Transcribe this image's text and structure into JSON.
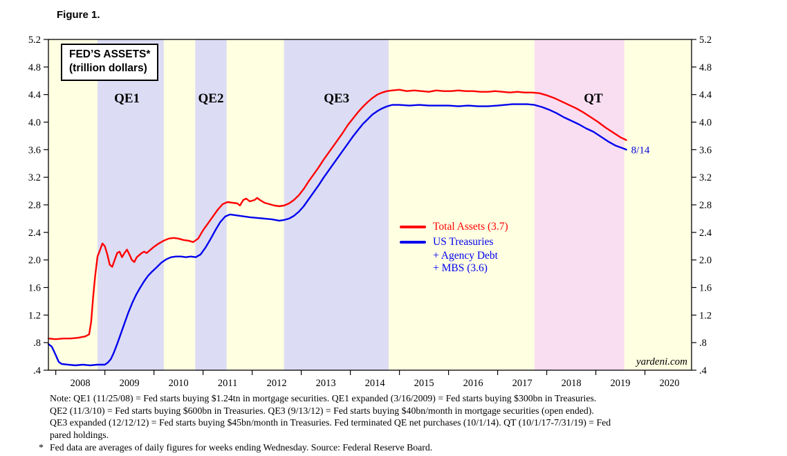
{
  "figure_label": "Figure 1.",
  "title_box": {
    "line1": "FED’S ASSETS*",
    "line2": "(trillion dollars)"
  },
  "notes": {
    "line1": "Note: QE1 (11/25/08) = Fed starts buying $1.24tn in mortgage securities. QE1 expanded (3/16/2009) = Fed starts buying $300bn in Treasuries.",
    "line2": "QE2 (11/3/10) = Fed starts buying $600bn in Treasuries. QE3 (9/13/12) = Fed starts buying $40bn/month in mortgage securities (open ended).",
    "line3": "QE3 expanded (12/12/12) = Fed starts buying $45bn/month in Treasuries. Fed terminated QE net purchases (10/1/14). QT (10/1/17-7/31/19) = Fed",
    "line4": "pared holdings.",
    "footnote_marker": "*",
    "footnote": "Fed data are averages of daily figures for weeks ending Wednesday. Source: Federal Reserve Board."
  },
  "chart_data": {
    "type": "line",
    "title": "FED'S ASSETS* (trillion dollars)",
    "xlabel": "",
    "ylabel": "trillion dollars",
    "grid": false,
    "plot_bg": "#ffffe2",
    "x_range": [
      2007.85,
      2020.95
    ],
    "y_range": [
      0.4,
      5.2
    ],
    "x_ticks": [
      2008,
      2009,
      2010,
      2011,
      2012,
      2013,
      2014,
      2015,
      2016,
      2017,
      2018,
      2019,
      2020
    ],
    "x_labels": [
      "2008",
      "2009",
      "2010",
      "2011",
      "2012",
      "2013",
      "2014",
      "2015",
      "2016",
      "2017",
      "2018",
      "2019",
      "2020"
    ],
    "y_ticks": [
      {
        "label": "5.2",
        "value": 5.2
      },
      {
        "label": "4.8",
        "value": 4.8
      },
      {
        "label": "4.4",
        "value": 4.4
      },
      {
        "label": "4.0",
        "value": 4.0
      },
      {
        "label": "3.6",
        "value": 3.6
      },
      {
        "label": "3.2",
        "value": 3.2
      },
      {
        "label": "2.8",
        "value": 2.8
      },
      {
        "label": "2.4",
        "value": 2.4
      },
      {
        "label": "2.0",
        "value": 2.0
      },
      {
        "label": "1.6",
        "value": 1.6
      },
      {
        "label": "1.2",
        "value": 1.2
      },
      {
        "label": ".8",
        "value": 0.8
      },
      {
        "label": ".4",
        "value": 0.4
      }
    ],
    "regions": [
      {
        "id": "qe1",
        "label": "QE1",
        "start": 2008.85,
        "end": 2010.2,
        "color": "#dcdcf4",
        "label_x": 2009.45
      },
      {
        "id": "qe2",
        "label": "QE2",
        "start": 2010.84,
        "end": 2011.48,
        "color": "#dcdcf4",
        "label_x": 2011.16
      },
      {
        "id": "qe3",
        "label": "QE3",
        "start": 2012.65,
        "end": 2014.78,
        "color": "#dcdcf4",
        "label_x": 2013.72
      },
      {
        "id": "qt",
        "label": "QT",
        "start": 2017.75,
        "end": 2019.58,
        "color": "#f9def1",
        "label_x": 2018.95
      }
    ],
    "legend": {
      "position": "center-right",
      "total_assets_label": "Total Assets (3.7)",
      "treasuries_lines": [
        "US Treasuries",
        "+ Agency Debt",
        "+ MBS (3.6)"
      ]
    },
    "annotation": {
      "label": "8/14",
      "x": 2019.72,
      "y": 3.6,
      "color": "#0000dd"
    },
    "branding": "yardeni.com",
    "series": [
      {
        "id": "total-assets",
        "name": "Total Assets (3.7)",
        "color": "#ff0000",
        "final_value": 3.7,
        "points": [
          [
            2007.85,
            0.86
          ],
          [
            2008.0,
            0.85
          ],
          [
            2008.15,
            0.86
          ],
          [
            2008.3,
            0.86
          ],
          [
            2008.45,
            0.87
          ],
          [
            2008.6,
            0.89
          ],
          [
            2008.68,
            0.92
          ],
          [
            2008.72,
            1.1
          ],
          [
            2008.76,
            1.45
          ],
          [
            2008.8,
            1.75
          ],
          [
            2008.85,
            2.05
          ],
          [
            2008.9,
            2.14
          ],
          [
            2008.95,
            2.24
          ],
          [
            2009.0,
            2.2
          ],
          [
            2009.05,
            2.08
          ],
          [
            2009.1,
            1.93
          ],
          [
            2009.15,
            1.9
          ],
          [
            2009.2,
            2.0
          ],
          [
            2009.25,
            2.1
          ],
          [
            2009.3,
            2.12
          ],
          [
            2009.35,
            2.04
          ],
          [
            2009.4,
            2.1
          ],
          [
            2009.45,
            2.15
          ],
          [
            2009.5,
            2.08
          ],
          [
            2009.55,
            2.0
          ],
          [
            2009.6,
            1.97
          ],
          [
            2009.65,
            2.04
          ],
          [
            2009.7,
            2.07
          ],
          [
            2009.75,
            2.1
          ],
          [
            2009.8,
            2.12
          ],
          [
            2009.85,
            2.1
          ],
          [
            2009.9,
            2.13
          ],
          [
            2010.0,
            2.19
          ],
          [
            2010.1,
            2.24
          ],
          [
            2010.2,
            2.28
          ],
          [
            2010.3,
            2.31
          ],
          [
            2010.4,
            2.32
          ],
          [
            2010.5,
            2.31
          ],
          [
            2010.6,
            2.29
          ],
          [
            2010.7,
            2.28
          ],
          [
            2010.8,
            2.26
          ],
          [
            2010.9,
            2.31
          ],
          [
            2011.0,
            2.43
          ],
          [
            2011.1,
            2.53
          ],
          [
            2011.2,
            2.63
          ],
          [
            2011.3,
            2.73
          ],
          [
            2011.4,
            2.81
          ],
          [
            2011.5,
            2.84
          ],
          [
            2011.6,
            2.83
          ],
          [
            2011.7,
            2.82
          ],
          [
            2011.75,
            2.79
          ],
          [
            2011.82,
            2.87
          ],
          [
            2011.88,
            2.89
          ],
          [
            2011.95,
            2.85
          ],
          [
            2012.05,
            2.87
          ],
          [
            2012.1,
            2.9
          ],
          [
            2012.18,
            2.86
          ],
          [
            2012.25,
            2.83
          ],
          [
            2012.35,
            2.81
          ],
          [
            2012.45,
            2.79
          ],
          [
            2012.55,
            2.78
          ],
          [
            2012.65,
            2.79
          ],
          [
            2012.75,
            2.82
          ],
          [
            2012.85,
            2.87
          ],
          [
            2012.95,
            2.94
          ],
          [
            2013.05,
            3.03
          ],
          [
            2013.15,
            3.14
          ],
          [
            2013.25,
            3.24
          ],
          [
            2013.35,
            3.34
          ],
          [
            2013.45,
            3.45
          ],
          [
            2013.55,
            3.55
          ],
          [
            2013.65,
            3.65
          ],
          [
            2013.75,
            3.75
          ],
          [
            2013.85,
            3.85
          ],
          [
            2013.95,
            3.96
          ],
          [
            2014.05,
            4.05
          ],
          [
            2014.15,
            4.14
          ],
          [
            2014.25,
            4.22
          ],
          [
            2014.35,
            4.29
          ],
          [
            2014.45,
            4.35
          ],
          [
            2014.55,
            4.4
          ],
          [
            2014.65,
            4.43
          ],
          [
            2014.75,
            4.45
          ],
          [
            2014.85,
            4.46
          ],
          [
            2015.0,
            4.47
          ],
          [
            2015.15,
            4.45
          ],
          [
            2015.3,
            4.46
          ],
          [
            2015.45,
            4.45
          ],
          [
            2015.6,
            4.44
          ],
          [
            2015.75,
            4.46
          ],
          [
            2015.9,
            4.45
          ],
          [
            2016.05,
            4.45
          ],
          [
            2016.2,
            4.46
          ],
          [
            2016.35,
            4.45
          ],
          [
            2016.5,
            4.45
          ],
          [
            2016.65,
            4.44
          ],
          [
            2016.8,
            4.44
          ],
          [
            2016.95,
            4.45
          ],
          [
            2017.1,
            4.44
          ],
          [
            2017.25,
            4.43
          ],
          [
            2017.4,
            4.44
          ],
          [
            2017.55,
            4.43
          ],
          [
            2017.7,
            4.43
          ],
          [
            2017.85,
            4.42
          ],
          [
            2018.0,
            4.39
          ],
          [
            2018.15,
            4.35
          ],
          [
            2018.3,
            4.3
          ],
          [
            2018.45,
            4.25
          ],
          [
            2018.6,
            4.2
          ],
          [
            2018.75,
            4.14
          ],
          [
            2018.9,
            4.07
          ],
          [
            2019.05,
            4.0
          ],
          [
            2019.2,
            3.92
          ],
          [
            2019.35,
            3.85
          ],
          [
            2019.5,
            3.78
          ],
          [
            2019.62,
            3.74
          ]
        ]
      },
      {
        "id": "treasuries",
        "name": "US Treasuries + Agency Debt + MBS (3.6)",
        "color": "#0000ee",
        "final_value": 3.6,
        "points": [
          [
            2007.85,
            0.78
          ],
          [
            2007.92,
            0.74
          ],
          [
            2008.0,
            0.62
          ],
          [
            2008.06,
            0.52
          ],
          [
            2008.12,
            0.49
          ],
          [
            2008.25,
            0.48
          ],
          [
            2008.4,
            0.47
          ],
          [
            2008.55,
            0.48
          ],
          [
            2008.7,
            0.47
          ],
          [
            2008.85,
            0.48
          ],
          [
            2009.0,
            0.48
          ],
          [
            2009.06,
            0.51
          ],
          [
            2009.12,
            0.56
          ],
          [
            2009.18,
            0.65
          ],
          [
            2009.25,
            0.78
          ],
          [
            2009.32,
            0.92
          ],
          [
            2009.4,
            1.08
          ],
          [
            2009.48,
            1.24
          ],
          [
            2009.56,
            1.38
          ],
          [
            2009.64,
            1.5
          ],
          [
            2009.72,
            1.6
          ],
          [
            2009.8,
            1.69
          ],
          [
            2009.88,
            1.77
          ],
          [
            2009.96,
            1.83
          ],
          [
            2010.05,
            1.89
          ],
          [
            2010.15,
            1.96
          ],
          [
            2010.25,
            2.01
          ],
          [
            2010.35,
            2.04
          ],
          [
            2010.45,
            2.05
          ],
          [
            2010.55,
            2.05
          ],
          [
            2010.65,
            2.04
          ],
          [
            2010.75,
            2.05
          ],
          [
            2010.85,
            2.04
          ],
          [
            2010.95,
            2.08
          ],
          [
            2011.05,
            2.18
          ],
          [
            2011.15,
            2.3
          ],
          [
            2011.25,
            2.43
          ],
          [
            2011.35,
            2.55
          ],
          [
            2011.45,
            2.63
          ],
          [
            2011.55,
            2.66
          ],
          [
            2011.65,
            2.65
          ],
          [
            2011.75,
            2.64
          ],
          [
            2011.85,
            2.63
          ],
          [
            2011.95,
            2.62
          ],
          [
            2012.1,
            2.61
          ],
          [
            2012.25,
            2.6
          ],
          [
            2012.4,
            2.59
          ],
          [
            2012.55,
            2.57
          ],
          [
            2012.65,
            2.58
          ],
          [
            2012.75,
            2.6
          ],
          [
            2012.85,
            2.64
          ],
          [
            2012.95,
            2.7
          ],
          [
            2013.05,
            2.78
          ],
          [
            2013.15,
            2.88
          ],
          [
            2013.25,
            2.98
          ],
          [
            2013.35,
            3.08
          ],
          [
            2013.45,
            3.19
          ],
          [
            2013.55,
            3.29
          ],
          [
            2013.65,
            3.39
          ],
          [
            2013.75,
            3.49
          ],
          [
            2013.85,
            3.59
          ],
          [
            2013.95,
            3.69
          ],
          [
            2014.05,
            3.79
          ],
          [
            2014.15,
            3.88
          ],
          [
            2014.25,
            3.97
          ],
          [
            2014.35,
            4.04
          ],
          [
            2014.45,
            4.11
          ],
          [
            2014.55,
            4.16
          ],
          [
            2014.65,
            4.2
          ],
          [
            2014.75,
            4.23
          ],
          [
            2014.85,
            4.25
          ],
          [
            2015.0,
            4.25
          ],
          [
            2015.2,
            4.24
          ],
          [
            2015.4,
            4.25
          ],
          [
            2015.6,
            4.24
          ],
          [
            2015.8,
            4.24
          ],
          [
            2016.0,
            4.24
          ],
          [
            2016.2,
            4.23
          ],
          [
            2016.4,
            4.24
          ],
          [
            2016.6,
            4.23
          ],
          [
            2016.8,
            4.23
          ],
          [
            2017.0,
            4.24
          ],
          [
            2017.15,
            4.25
          ],
          [
            2017.3,
            4.26
          ],
          [
            2017.45,
            4.26
          ],
          [
            2017.6,
            4.26
          ],
          [
            2017.75,
            4.25
          ],
          [
            2017.9,
            4.22
          ],
          [
            2018.05,
            4.18
          ],
          [
            2018.2,
            4.13
          ],
          [
            2018.35,
            4.07
          ],
          [
            2018.5,
            4.02
          ],
          [
            2018.65,
            3.97
          ],
          [
            2018.8,
            3.91
          ],
          [
            2018.95,
            3.86
          ],
          [
            2019.1,
            3.79
          ],
          [
            2019.25,
            3.72
          ],
          [
            2019.4,
            3.66
          ],
          [
            2019.55,
            3.62
          ],
          [
            2019.62,
            3.6
          ]
        ]
      }
    ]
  }
}
